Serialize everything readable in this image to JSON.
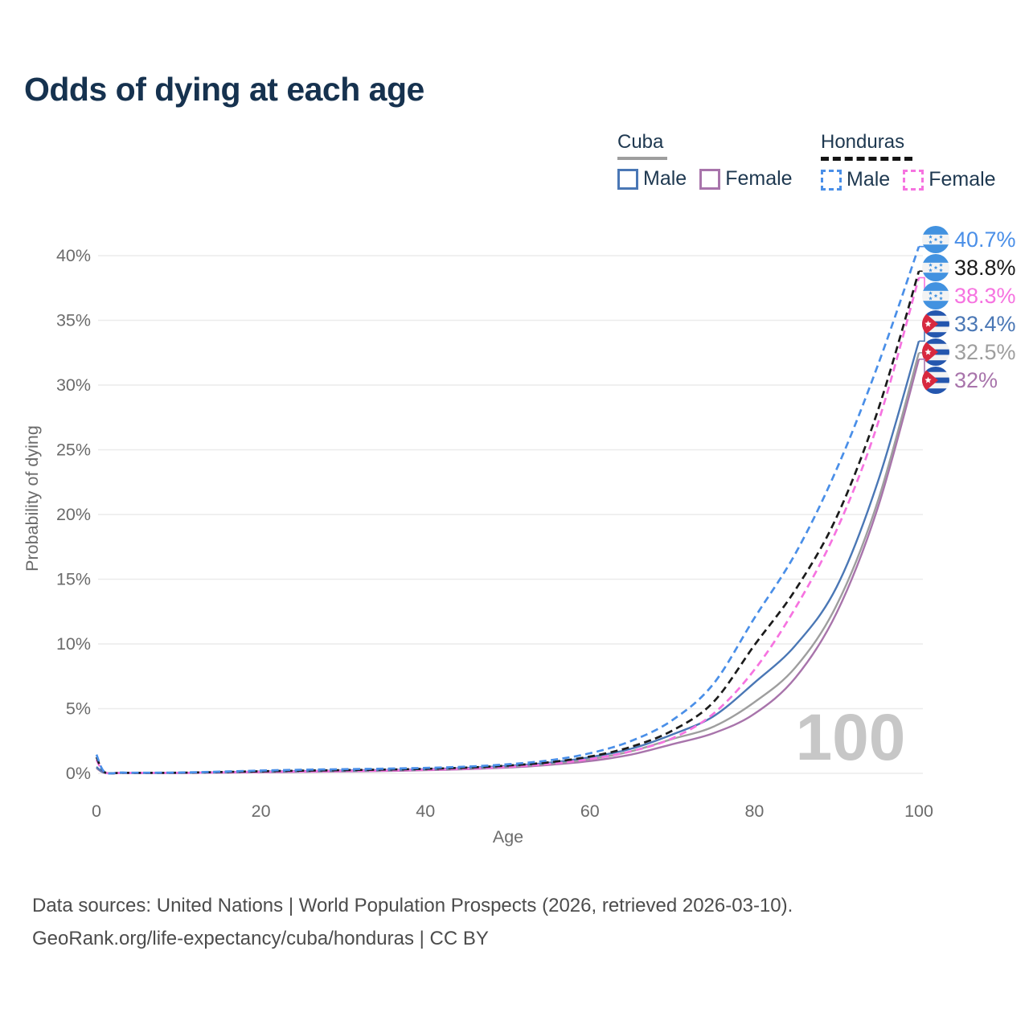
{
  "title": "Odds of dying at each age",
  "legend": {
    "cuba": {
      "name": "Cuba",
      "male_label": "Male",
      "female_label": "Female",
      "male_color": "#4a77b5",
      "female_color": "#a874ab",
      "line_color": "#9e9e9e",
      "line_style": "solid"
    },
    "honduras": {
      "name": "Honduras",
      "male_label": "Male",
      "female_label": "Female",
      "male_color": "#4a8fe8",
      "female_color": "#f673e0",
      "line_color": "#141414",
      "line_style": "dashed"
    }
  },
  "axes": {
    "x": {
      "label": "Age",
      "ticks": [
        0,
        20,
        40,
        60,
        80,
        100
      ],
      "range": [
        0,
        100
      ]
    },
    "y": {
      "label": "Probability of dying",
      "ticks": [
        "0%",
        "5%",
        "10%",
        "15%",
        "20%",
        "25%",
        "30%",
        "35%",
        "40%"
      ],
      "tick_values": [
        0,
        5,
        10,
        15,
        20,
        25,
        30,
        35,
        40
      ],
      "range": [
        0,
        42
      ]
    }
  },
  "watermark": "100",
  "chart_data": {
    "type": "line",
    "title": "Odds of dying at each age",
    "xlabel": "Age",
    "ylabel": "Probability of dying",
    "xlim": [
      0,
      100
    ],
    "ylim": [
      0,
      42
    ],
    "grid": "horizontal",
    "legend_position": "top-right",
    "x": [
      0,
      1,
      3,
      5,
      10,
      15,
      20,
      25,
      30,
      35,
      40,
      45,
      50,
      55,
      60,
      65,
      70,
      75,
      80,
      85,
      90,
      95,
      100
    ],
    "series": [
      {
        "name": "Honduras Male",
        "country": "Honduras",
        "sex": "Male",
        "style": "dashed",
        "color": "#4a8fe8",
        "flag": "honduras",
        "end_label": "40.7%",
        "values": [
          1.45,
          0.1,
          0.06,
          0.05,
          0.06,
          0.13,
          0.22,
          0.28,
          0.32,
          0.36,
          0.42,
          0.52,
          0.7,
          1.0,
          1.55,
          2.5,
          4.1,
          6.9,
          12.0,
          17.0,
          23.5,
          31.5,
          40.7
        ]
      },
      {
        "name": "Honduras Both sexes",
        "country": "Honduras",
        "sex": "Both",
        "style": "dashed",
        "color": "#1b1b1b",
        "flag": "honduras",
        "end_label": "38.8%",
        "values": [
          1.25,
          0.09,
          0.05,
          0.04,
          0.05,
          0.1,
          0.16,
          0.21,
          0.25,
          0.29,
          0.35,
          0.44,
          0.6,
          0.85,
          1.3,
          2.05,
          3.3,
          5.5,
          9.9,
          14.2,
          19.8,
          28.0,
          38.8
        ]
      },
      {
        "name": "Honduras Female",
        "country": "Honduras",
        "sex": "Female",
        "style": "dashed",
        "color": "#f673e0",
        "flag": "honduras",
        "end_label": "38.3%",
        "values": [
          1.05,
          0.08,
          0.04,
          0.04,
          0.04,
          0.07,
          0.11,
          0.15,
          0.18,
          0.22,
          0.28,
          0.36,
          0.5,
          0.72,
          1.1,
          1.7,
          2.7,
          4.6,
          8.0,
          12.8,
          18.8,
          27.0,
          38.3
        ]
      },
      {
        "name": "Cuba Male",
        "country": "Cuba",
        "sex": "Male",
        "style": "solid",
        "color": "#4a77b5",
        "flag": "cuba",
        "end_label": "33.4%",
        "values": [
          0.5,
          0.05,
          0.04,
          0.03,
          0.04,
          0.08,
          0.14,
          0.18,
          0.22,
          0.26,
          0.32,
          0.42,
          0.58,
          0.82,
          1.25,
          1.9,
          3.0,
          4.4,
          7.0,
          9.9,
          14.4,
          22.5,
          33.4
        ]
      },
      {
        "name": "Cuba Both sexes",
        "country": "Cuba",
        "sex": "Both",
        "style": "solid",
        "color": "#9e9e9e",
        "flag": "cuba",
        "end_label": "32.5%",
        "values": [
          0.45,
          0.05,
          0.03,
          0.03,
          0.03,
          0.07,
          0.12,
          0.16,
          0.19,
          0.23,
          0.29,
          0.38,
          0.52,
          0.74,
          1.1,
          1.7,
          2.65,
          3.6,
          5.5,
          8.2,
          13.0,
          21.0,
          32.5
        ]
      },
      {
        "name": "Cuba Female",
        "country": "Cuba",
        "sex": "Female",
        "style": "solid",
        "color": "#a874ab",
        "flag": "cuba",
        "end_label": "32%",
        "values": [
          0.4,
          0.04,
          0.03,
          0.02,
          0.03,
          0.05,
          0.08,
          0.11,
          0.14,
          0.18,
          0.24,
          0.32,
          0.45,
          0.65,
          0.95,
          1.45,
          2.25,
          3.1,
          4.6,
          7.4,
          12.4,
          20.5,
          32.0
        ]
      }
    ]
  },
  "footer": {
    "line1": "Data sources: United Nations | World Population Prospects (2026, retrieved 2026-03-10).",
    "line2": "GeoRank.org/life-expectancy/cuba/honduras | CC BY"
  },
  "colors": {
    "title": "#16324f",
    "axis_text": "#6b6b6b",
    "grid": "#ececec",
    "watermark": "#c7c7c7",
    "footer_text": "#4c4c4c",
    "flag_cuba_blue": "#2456ae",
    "flag_cuba_red": "#d8293f",
    "flag_honduras_blue": "#4292e0"
  }
}
